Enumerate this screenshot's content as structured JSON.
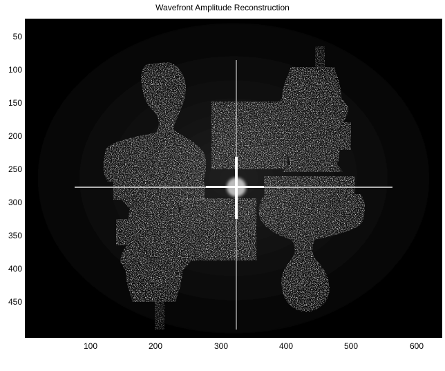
{
  "figure": {
    "title": "Wavefront Amplitude Reconstruction",
    "colormap": "grayscale",
    "background_color": "#000000",
    "speckle_color": "#ffffff"
  },
  "axes": {
    "xlim": [
      1,
      640
    ],
    "ylim": [
      1,
      480
    ],
    "y_direction": "reversed",
    "x_ticks": [
      "100",
      "200",
      "300",
      "400",
      "500",
      "600"
    ],
    "y_ticks": [
      "50",
      "100",
      "150",
      "200",
      "250",
      "300",
      "350",
      "400",
      "450"
    ]
  },
  "image_content": {
    "description_icons": [
      "bust-statue-upright",
      "chess-piece-upright",
      "chess-piece-inverted",
      "bust-statue-inverted",
      "center-cross-artifact"
    ]
  }
}
